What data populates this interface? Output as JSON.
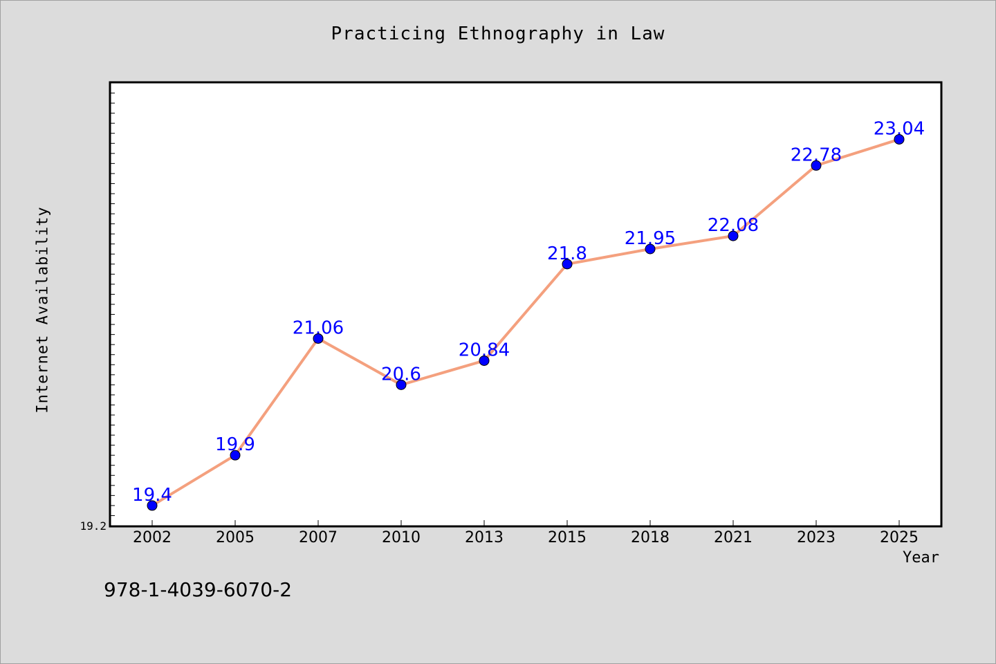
{
  "chart_data": {
    "type": "line",
    "title": "Practicing Ethnography in Law",
    "xlabel": "Year",
    "ylabel": "Internet Availability",
    "categories": [
      "2002",
      "2005",
      "2007",
      "2010",
      "2013",
      "2015",
      "2018",
      "2021",
      "2023",
      "2025"
    ],
    "series": [
      {
        "values": [
          19.4,
          19.9,
          21.06,
          20.6,
          20.84,
          21.8,
          21.95,
          22.08,
          22.78,
          23.04
        ],
        "labels": [
          "19.4",
          "19.9",
          "21.06",
          "20.6",
          "20.84",
          "21.8",
          "21.95",
          "22.08",
          "22.78",
          "23.04"
        ]
      }
    ],
    "ylim": [
      19.2,
      23.6
    ],
    "y_tick_labels": [
      "19.2"
    ],
    "grid": false,
    "colors": {
      "line": "#f4a07e",
      "marker": "#0000ff",
      "label": "#0000ff"
    }
  },
  "footer": {
    "isbn": "978-1-4039-6070-2"
  }
}
